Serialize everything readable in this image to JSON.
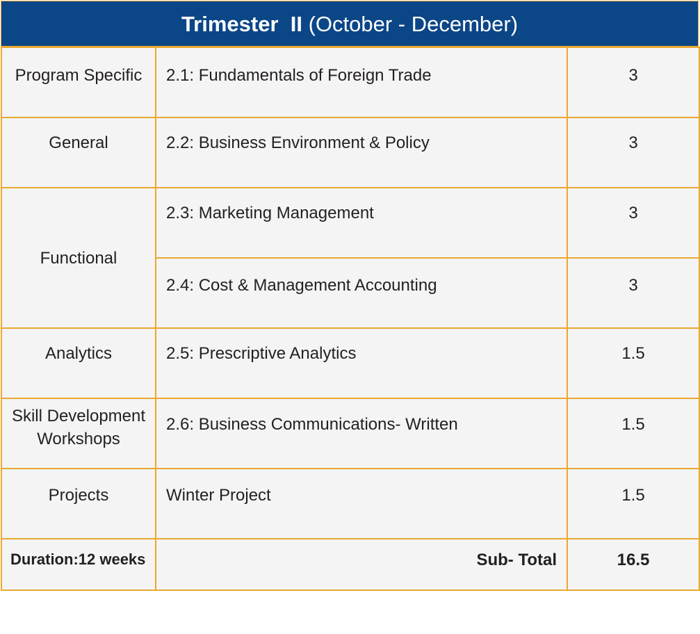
{
  "header": {
    "title_bold": "Trimester  II",
    "title_light": "(October - December)"
  },
  "rows": [
    {
      "category": "Program Specific",
      "course": "2.1: Fundamentals of Foreign Trade",
      "credits": "3"
    },
    {
      "category": "General",
      "course": "2.2: Business Environment & Policy",
      "credits": "3"
    },
    {
      "category": "Functional",
      "course": "2.3: Marketing Management",
      "credits": "3"
    },
    {
      "category": "",
      "course": "2.4: Cost & Management Accounting",
      "credits": "3"
    },
    {
      "category": "Analytics",
      "course": "2.5: Prescriptive Analytics",
      "credits": "1.5"
    },
    {
      "category": "Skill Development Workshops",
      "category_line1": "Skill Development",
      "category_line2": "Workshops",
      "course": "2.6: Business Communications- Written",
      "credits": "1.5"
    },
    {
      "category": "Projects",
      "course": "Winter Project",
      "credits": "1.5"
    }
  ],
  "footer": {
    "duration": "Duration:12 weeks",
    "subtotal_label": "Sub- Total",
    "subtotal_value": "16.5"
  },
  "colors": {
    "header_bg": "#0b4687",
    "border": "#eaa830",
    "cell_bg": "#f4f4f4",
    "text": "#231f20"
  }
}
